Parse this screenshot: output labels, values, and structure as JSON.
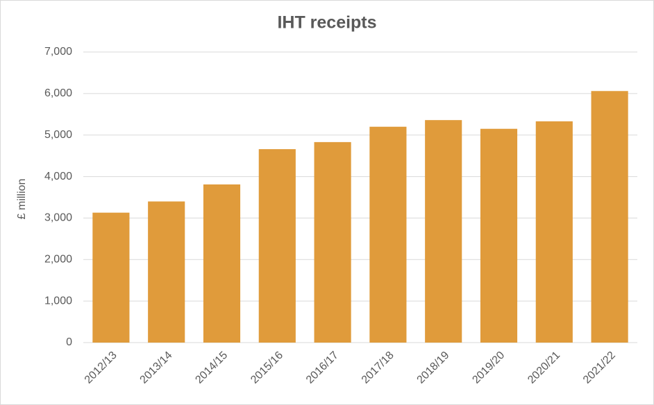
{
  "chart_data": {
    "type": "bar",
    "title": "IHT receipts",
    "y_label": "£ million",
    "categories": [
      "2012/13",
      "2013/14",
      "2014/15",
      "2015/16",
      "2016/17",
      "2017/18",
      "2018/19",
      "2019/20",
      "2020/21",
      "2021/22"
    ],
    "values": [
      3130,
      3400,
      3810,
      4660,
      4830,
      5200,
      5360,
      5150,
      5330,
      6060
    ],
    "color": "#e09b3b",
    "ylim": [
      0,
      7000
    ],
    "yticks": [
      0,
      {
        "value": 1000,
        "label": "1,000"
      },
      {
        "value": 2000,
        "label": "2,000"
      },
      {
        "value": 3000,
        "label": "3,000"
      },
      {
        "value": 4000,
        "label": "4,000"
      },
      {
        "value": 5000,
        "label": "5,000"
      },
      {
        "value": 6000,
        "label": "6,000"
      },
      {
        "value": 7000,
        "label": "7,000"
      }
    ],
    "grid": true
  }
}
